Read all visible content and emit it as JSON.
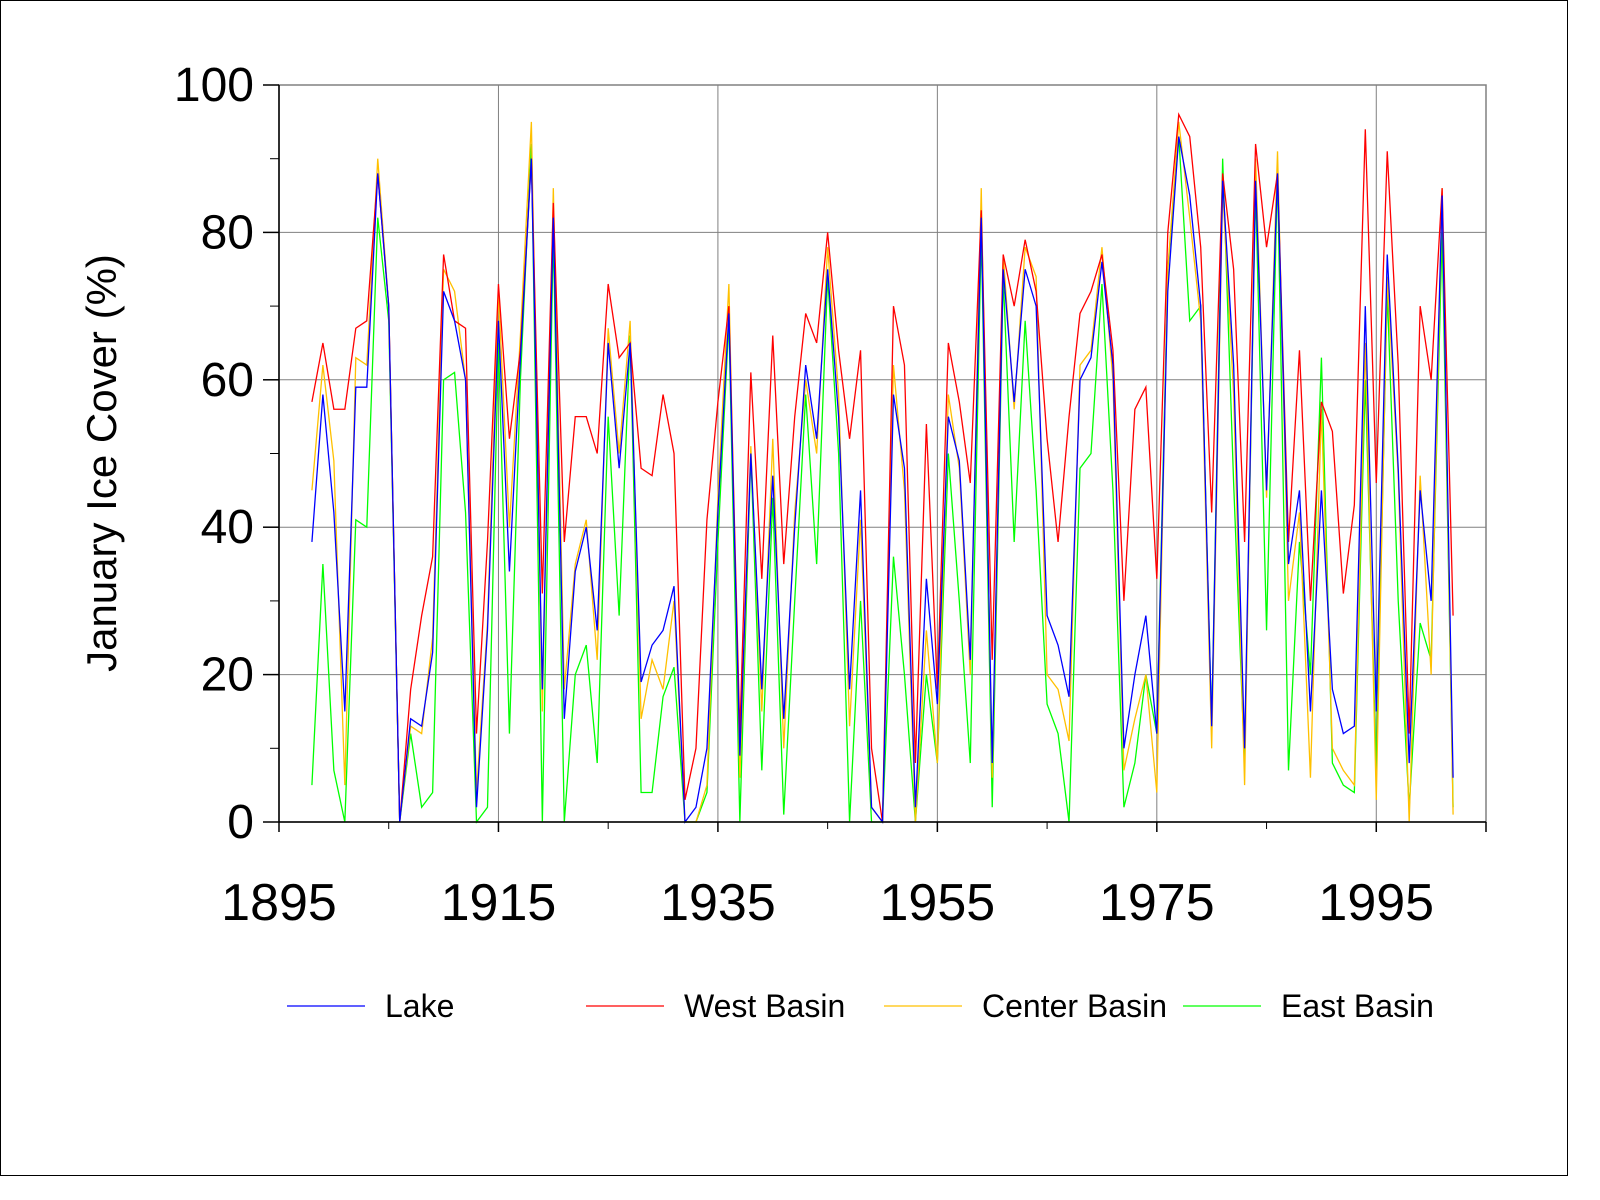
{
  "chart_data": {
    "type": "line",
    "ylabel": "January Ice Cover (%)",
    "xlabel": "",
    "xlim": [
      1895,
      2005
    ],
    "ylim": [
      0,
      100
    ],
    "x_ticks": [
      1895,
      1915,
      1935,
      1955,
      1975,
      1995
    ],
    "y_ticks": [
      0,
      20,
      40,
      60,
      80,
      100
    ],
    "grid": true,
    "legend_position": "bottom",
    "years_start": 1898,
    "years_end": 2002,
    "series": [
      {
        "name": "Lake",
        "color": "#0000ff",
        "values": [
          38,
          58,
          42,
          15,
          59,
          59,
          88,
          70,
          0,
          14,
          13,
          23,
          72,
          68,
          60,
          2,
          26,
          68,
          34,
          63,
          90,
          18,
          82,
          14,
          34,
          40,
          26,
          65,
          48,
          65,
          19,
          24,
          26,
          32,
          0,
          2,
          10,
          42,
          69,
          9,
          50,
          18,
          47,
          14,
          40,
          62,
          52,
          75,
          55,
          18,
          45,
          2,
          0,
          58,
          48,
          2,
          33,
          16,
          55,
          49,
          22,
          82,
          8,
          75,
          57,
          75,
          70,
          28,
          24,
          17,
          60,
          63,
          76,
          62,
          10,
          20,
          28,
          12,
          72,
          93,
          85,
          70,
          13,
          87,
          62,
          10,
          87,
          45,
          88,
          35,
          45,
          15,
          45,
          18,
          12,
          13,
          70,
          15,
          77,
          48,
          8,
          45,
          30,
          85,
          6
        ]
      },
      {
        "name": "West Basin",
        "color": "#ff0000",
        "values": [
          57,
          65,
          56,
          56,
          67,
          68,
          88,
          70,
          0,
          18,
          28,
          36,
          77,
          68,
          67,
          12,
          38,
          73,
          52,
          64,
          90,
          31,
          84,
          38,
          55,
          55,
          50,
          73,
          63,
          65,
          48,
          47,
          58,
          50,
          3,
          10,
          41,
          57,
          70,
          12,
          61,
          33,
          66,
          35,
          55,
          69,
          65,
          80,
          64,
          52,
          64,
          10,
          0,
          70,
          62,
          8,
          54,
          18,
          65,
          57,
          46,
          83,
          22,
          77,
          70,
          79,
          72,
          52,
          38,
          55,
          69,
          72,
          77,
          64,
          30,
          56,
          59,
          33,
          80,
          96,
          93,
          78,
          42,
          88,
          75,
          38,
          92,
          78,
          88,
          38,
          64,
          30,
          57,
          53,
          31,
          43,
          94,
          46,
          91,
          62,
          12,
          70,
          60,
          86,
          28
        ]
      },
      {
        "name": "Center Basin",
        "color": "#ffc000",
        "values": [
          45,
          62,
          49,
          5,
          63,
          62,
          90,
          70,
          0,
          13,
          12,
          25,
          75,
          72,
          60,
          4,
          27,
          72,
          40,
          66,
          95,
          15,
          86,
          18,
          35,
          41,
          22,
          67,
          50,
          68,
          14,
          22,
          18,
          30,
          0,
          0,
          5,
          44,
          73,
          6,
          51,
          15,
          52,
          10,
          42,
          60,
          50,
          78,
          58,
          13,
          41,
          2,
          0,
          62,
          45,
          0,
          26,
          8,
          58,
          48,
          20,
          86,
          6,
          77,
          56,
          78,
          74,
          20,
          18,
          11,
          62,
          64,
          78,
          60,
          7,
          14,
          20,
          4,
          75,
          95,
          82,
          68,
          10,
          86,
          58,
          5,
          90,
          44,
          91,
          30,
          42,
          6,
          56,
          10,
          7,
          5,
          65,
          3,
          74,
          47,
          0,
          47,
          20,
          86,
          1
        ]
      },
      {
        "name": "East Basin",
        "color": "#00ff00",
        "values": [
          5,
          35,
          7,
          0,
          41,
          40,
          82,
          68,
          0,
          12,
          2,
          4,
          60,
          61,
          42,
          0,
          2,
          65,
          12,
          60,
          92,
          0,
          80,
          0,
          20,
          24,
          8,
          55,
          28,
          66,
          4,
          4,
          17,
          21,
          0,
          0,
          4,
          38,
          68,
          0,
          50,
          7,
          44,
          1,
          30,
          58,
          35,
          74,
          50,
          0,
          30,
          0,
          0,
          36,
          20,
          0,
          20,
          8,
          50,
          30,
          8,
          80,
          2,
          74,
          38,
          68,
          45,
          16,
          12,
          0,
          48,
          50,
          73,
          45,
          2,
          8,
          20,
          12,
          75,
          93,
          68,
          70,
          13,
          90,
          46,
          8,
          86,
          26,
          88,
          7,
          38,
          20,
          63,
          8,
          5,
          4,
          60,
          7,
          72,
          30,
          2,
          27,
          22,
          80,
          2
        ]
      }
    ]
  }
}
